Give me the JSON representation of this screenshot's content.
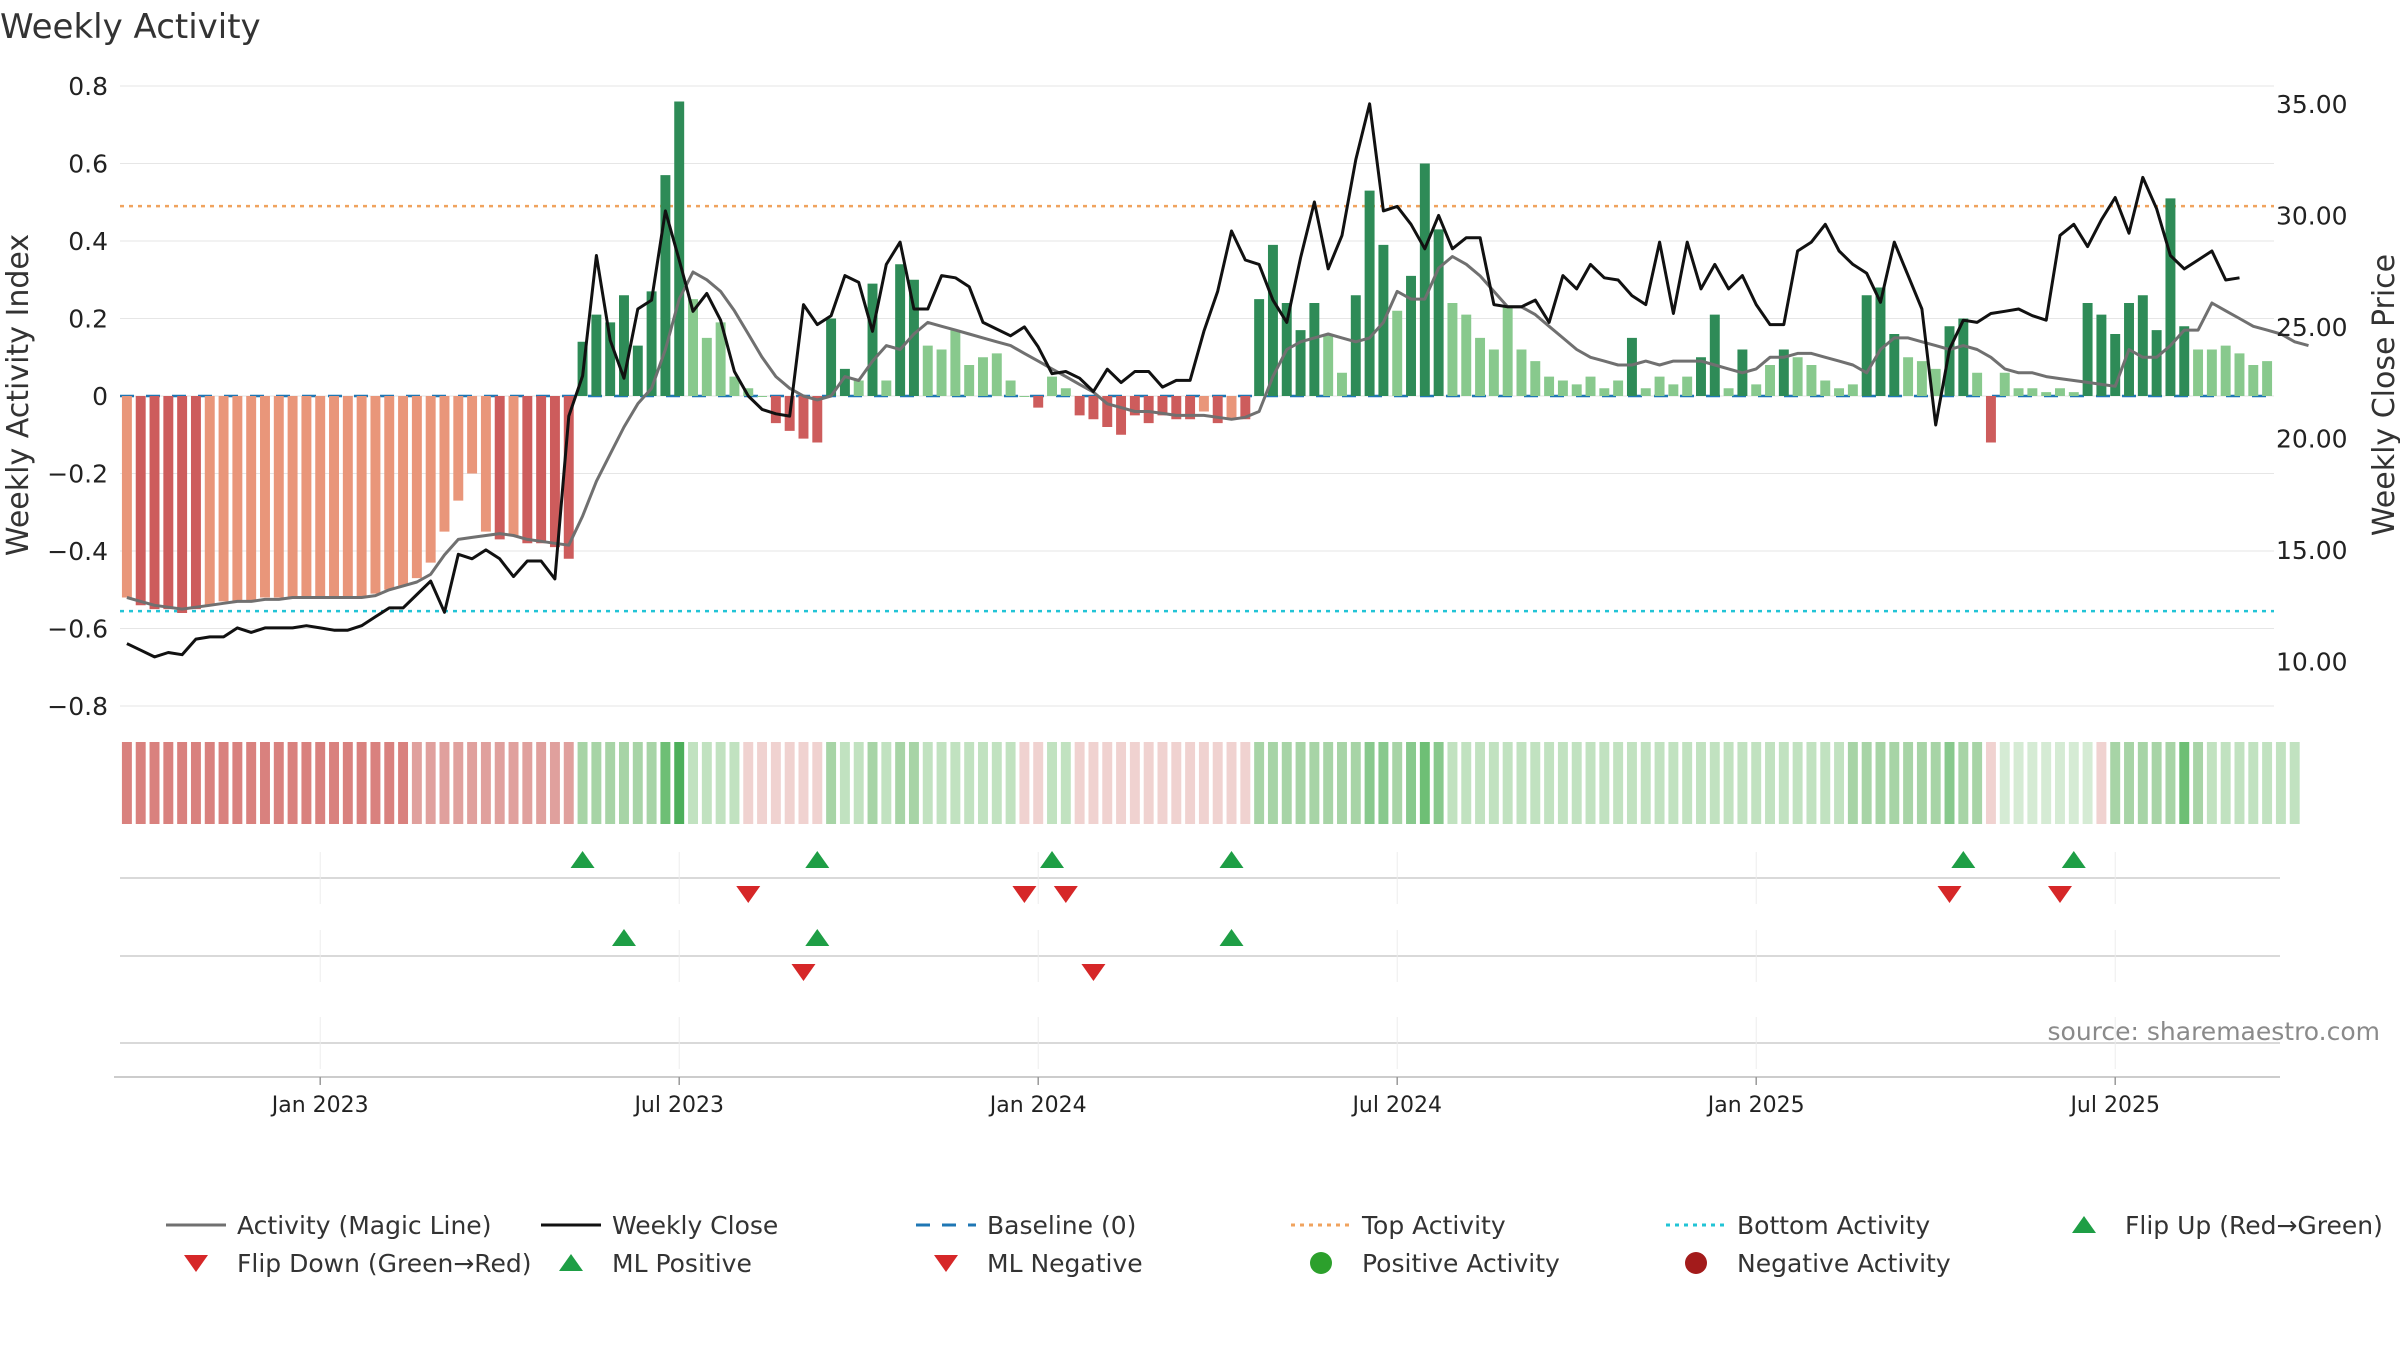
{
  "chart_data": {
    "type": "bar+line",
    "title": "Weekly Activity",
    "ylabel_left": "Weekly Activity Index",
    "ylabel_right": "Weekly Close Price",
    "ylim_left": [
      -0.8,
      0.8
    ],
    "ylim_right": [
      8.0,
      35.8
    ],
    "left_ticks": [
      0.8,
      0.6,
      0.4,
      0.2,
      0,
      -0.2,
      -0.4,
      -0.6,
      -0.8
    ],
    "left_tick_labels": [
      "0.8",
      "0.6",
      "0.4",
      "0.2",
      "0",
      "−0.2",
      "−0.4",
      "−0.6",
      "−0.8"
    ],
    "right_ticks": [
      35,
      30,
      25,
      20,
      15,
      10
    ],
    "right_tick_labels": [
      "35.00",
      "30.00",
      "25.00",
      "20.00",
      "15.00",
      "10.00"
    ],
    "x_ticks": [
      {
        "label": "Jan 2023",
        "week": 14
      },
      {
        "label": "Jul 2023",
        "week": 40
      },
      {
        "label": "Jan 2024",
        "week": 66
      },
      {
        "label": "Jul 2024",
        "week": 92
      },
      {
        "label": "Jan 2025",
        "week": 118
      },
      {
        "label": "Jul 2025",
        "week": 144
      }
    ],
    "top_activity": 0.49,
    "bottom_activity": -0.555,
    "activity": [
      -0.52,
      -0.54,
      -0.55,
      -0.55,
      -0.56,
      -0.55,
      -0.54,
      -0.53,
      -0.53,
      -0.53,
      -0.52,
      -0.52,
      -0.52,
      -0.52,
      -0.52,
      -0.52,
      -0.52,
      -0.52,
      -0.51,
      -0.5,
      -0.49,
      -0.47,
      -0.43,
      -0.35,
      -0.27,
      -0.2,
      -0.35,
      -0.37,
      -0.36,
      -0.38,
      -0.38,
      -0.39,
      -0.42,
      0.14,
      0.21,
      0.19,
      0.26,
      0.13,
      0.27,
      0.57,
      0.76,
      0.25,
      0.15,
      0.19,
      0.05,
      0.02,
      0.0,
      -0.07,
      -0.09,
      -0.11,
      -0.12,
      0.2,
      0.07,
      0.04,
      0.29,
      0.04,
      0.34,
      0.3,
      0.13,
      0.12,
      0.17,
      0.08,
      0.1,
      0.11,
      0.04,
      0.0,
      -0.03,
      0.05,
      0.02,
      -0.05,
      -0.06,
      -0.08,
      -0.1,
      -0.05,
      -0.07,
      -0.05,
      -0.06,
      -0.06,
      -0.04,
      -0.07,
      -0.06,
      -0.06,
      0.25,
      0.39,
      0.24,
      0.17,
      0.24,
      0.16,
      0.06,
      0.26,
      0.53,
      0.39,
      0.22,
      0.31,
      0.6,
      0.43,
      0.24,
      0.21,
      0.15,
      0.12,
      0.23,
      0.12,
      0.09,
      0.05,
      0.04,
      0.03,
      0.05,
      0.02,
      0.04,
      0.15,
      0.02,
      0.05,
      0.03,
      0.05,
      0.1,
      0.21,
      0.02,
      0.12,
      0.03,
      0.08,
      0.12,
      0.1,
      0.08,
      0.04,
      0.02,
      0.03,
      0.26,
      0.28,
      0.16,
      0.1,
      0.09,
      0.07,
      0.18,
      0.2,
      0.06,
      -0.12,
      0.06,
      0.02,
      0.02,
      0.01,
      0.02,
      0.01,
      0.24,
      0.21,
      0.16,
      0.24,
      0.26,
      0.17,
      0.51,
      0.18,
      0.12,
      0.12,
      0.13,
      0.11,
      0.08,
      0.09
    ],
    "magic_line": [
      -0.52,
      -0.53,
      -0.54,
      -0.545,
      -0.55,
      -0.545,
      -0.54,
      -0.535,
      -0.53,
      -0.53,
      -0.525,
      -0.525,
      -0.52,
      -0.52,
      -0.52,
      -0.52,
      -0.52,
      -0.52,
      -0.515,
      -0.5,
      -0.49,
      -0.48,
      -0.46,
      -0.41,
      -0.37,
      -0.365,
      -0.36,
      -0.355,
      -0.36,
      -0.37,
      -0.375,
      -0.38,
      -0.385,
      -0.31,
      -0.22,
      -0.15,
      -0.08,
      -0.02,
      0.02,
      0.12,
      0.25,
      0.32,
      0.3,
      0.27,
      0.22,
      0.16,
      0.1,
      0.05,
      0.02,
      0.0,
      -0.01,
      0.0,
      0.05,
      0.04,
      0.09,
      0.13,
      0.12,
      0.16,
      0.19,
      0.18,
      0.17,
      0.16,
      0.15,
      0.14,
      0.13,
      0.11,
      0.09,
      0.07,
      0.05,
      0.03,
      0.01,
      -0.02,
      -0.03,
      -0.04,
      -0.04,
      -0.045,
      -0.05,
      -0.05,
      -0.05,
      -0.055,
      -0.06,
      -0.055,
      -0.04,
      0.05,
      0.12,
      0.14,
      0.15,
      0.16,
      0.15,
      0.14,
      0.15,
      0.19,
      0.27,
      0.25,
      0.25,
      0.33,
      0.36,
      0.34,
      0.31,
      0.27,
      0.23,
      0.23,
      0.21,
      0.18,
      0.15,
      0.12,
      0.1,
      0.09,
      0.08,
      0.08,
      0.09,
      0.08,
      0.09,
      0.09,
      0.09,
      0.08,
      0.07,
      0.06,
      0.07,
      0.1,
      0.1,
      0.11,
      0.11,
      0.1,
      0.09,
      0.08,
      0.06,
      0.12,
      0.15,
      0.15,
      0.14,
      0.13,
      0.12,
      0.13,
      0.12,
      0.1,
      0.07,
      0.06,
      0.06,
      0.05,
      0.045,
      0.04,
      0.035,
      0.03,
      0.025,
      0.12,
      0.1,
      0.1,
      0.13,
      0.17,
      0.17,
      0.24,
      0.22,
      0.2,
      0.18,
      0.17,
      0.16,
      0.14,
      0.13
    ],
    "weekly_close": [
      10.8,
      10.5,
      10.2,
      10.4,
      10.3,
      11.0,
      11.1,
      11.1,
      11.5,
      11.3,
      11.5,
      11.5,
      11.5,
      11.6,
      11.5,
      11.4,
      11.4,
      11.6,
      12.0,
      12.4,
      12.4,
      13.0,
      13.6,
      12.2,
      14.8,
      14.6,
      15.0,
      14.6,
      13.8,
      14.5,
      14.5,
      13.7,
      21.0,
      22.8,
      28.2,
      24.4,
      22.7,
      25.8,
      26.2,
      30.2,
      28.0,
      25.7,
      26.5,
      25.3,
      23.0,
      21.9,
      21.3,
      21.1,
      21.0,
      26.0,
      25.1,
      25.5,
      27.3,
      27.0,
      24.8,
      27.8,
      28.8,
      25.8,
      25.8,
      27.3,
      27.2,
      26.8,
      25.2,
      24.9,
      24.6,
      25.0,
      24.1,
      22.9,
      23.0,
      22.7,
      22.1,
      23.1,
      22.5,
      23.0,
      23.0,
      22.3,
      22.6,
      22.6,
      24.8,
      26.6,
      29.3,
      28.0,
      27.8,
      26.2,
      25.2,
      28.1,
      30.6,
      27.6,
      29.1,
      32.5,
      35.0,
      30.2,
      30.4,
      29.6,
      28.5,
      30.0,
      28.5,
      29.0,
      29.0,
      26.0,
      25.9,
      25.9,
      26.2,
      25.2,
      27.3,
      26.7,
      27.8,
      27.2,
      27.1,
      26.4,
      26.0,
      28.8,
      25.6,
      28.8,
      26.7,
      27.8,
      26.7,
      27.3,
      26.0,
      25.1,
      25.1,
      28.4,
      28.8,
      29.6,
      28.4,
      27.8,
      27.4,
      26.1,
      28.8,
      27.3,
      25.8,
      20.6,
      24.0,
      25.3,
      25.2,
      25.6,
      25.7,
      25.8,
      25.5,
      25.3,
      29.1,
      29.6,
      28.6,
      29.8,
      30.8,
      29.2,
      31.7,
      30.3,
      28.2,
      27.6,
      28.0,
      28.4,
      27.1,
      27.2
    ],
    "strip_colors": [
      "#d9817e",
      "#d9817e",
      "#d9817e",
      "#d9817e",
      "#d9817e",
      "#d9817e",
      "#d9817e",
      "#d9817e",
      "#d9817e",
      "#d9817e",
      "#d9817e",
      "#d9817e",
      "#d9817e",
      "#d9817e",
      "#d9817e",
      "#d9817e",
      "#d9817e",
      "#d9817e",
      "#d9817e",
      "#d9817e",
      "#d9817e",
      "#e0a09d",
      "#e0a09d",
      "#e0a09d",
      "#e0a09d",
      "#e0a09d",
      "#e0a09d",
      "#e0a09d",
      "#e0a09d",
      "#e0a09d",
      "#e0a09d",
      "#e0a09d",
      "#e0a09d",
      "#a7d4a6",
      "#a7d4a6",
      "#a7d4a6",
      "#a7d4a6",
      "#a7d4a6",
      "#a7d4a6",
      "#6ebf75",
      "#4caf5a",
      "#c1e2c0",
      "#c1e2c0",
      "#c1e2c0",
      "#c1e2c0",
      "#f0d2d0",
      "#f0d2d0",
      "#f0d2d0",
      "#f0d2d0",
      "#f0d2d0",
      "#f0d2d0",
      "#a7d4a6",
      "#c1e2c0",
      "#c1e2c0",
      "#a7d4a6",
      "#c1e2c0",
      "#a7d4a6",
      "#a7d4a6",
      "#c1e2c0",
      "#c1e2c0",
      "#c1e2c0",
      "#c1e2c0",
      "#c1e2c0",
      "#c1e2c0",
      "#c1e2c0",
      "#f0d2d0",
      "#f0d2d0",
      "#c1e2c0",
      "#c1e2c0",
      "#f0d2d0",
      "#f0d2d0",
      "#f0d2d0",
      "#f0d2d0",
      "#f0d2d0",
      "#f0d2d0",
      "#f0d2d0",
      "#f0d2d0",
      "#f0d2d0",
      "#f0d2d0",
      "#f0d2d0",
      "#f0d2d0",
      "#f0d2d0",
      "#a7d4a6",
      "#a7d4a6",
      "#a7d4a6",
      "#a7d4a6",
      "#a7d4a6",
      "#a7d4a6",
      "#a7d4a6",
      "#a7d4a6",
      "#88c98d",
      "#88c98d",
      "#a7d4a6",
      "#88c98d",
      "#6ebf75",
      "#88c98d",
      "#c1e2c0",
      "#c1e2c0",
      "#c1e2c0",
      "#c1e2c0",
      "#c1e2c0",
      "#c1e2c0",
      "#c1e2c0",
      "#c1e2c0",
      "#c1e2c0",
      "#c1e2c0",
      "#c1e2c0",
      "#c1e2c0",
      "#c1e2c0",
      "#c1e2c0",
      "#c1e2c0",
      "#c1e2c0",
      "#c1e2c0",
      "#c1e2c0",
      "#c1e2c0",
      "#c1e2c0",
      "#c1e2c0",
      "#c1e2c0",
      "#c1e2c0",
      "#c1e2c0",
      "#c1e2c0",
      "#c1e2c0",
      "#c1e2c0",
      "#c1e2c0",
      "#c1e2c0",
      "#a7d4a6",
      "#a7d4a6",
      "#a7d4a6",
      "#a7d4a6",
      "#a7d4a6",
      "#a7d4a6",
      "#a7d4a6",
      "#88c98d",
      "#a7d4a6",
      "#a7d4a6",
      "#f0d2d0",
      "#d5ebd4",
      "#d5ebd4",
      "#d5ebd4",
      "#d5ebd4",
      "#d5ebd4",
      "#d5ebd4",
      "#d5ebd4",
      "#f0d2d0",
      "#a7d4a6",
      "#a7d4a6",
      "#a7d4a6",
      "#a7d4a6",
      "#a7d4a6",
      "#6ebf75",
      "#a7d4a6",
      "#c1e2c0",
      "#c1e2c0",
      "#c1e2c0",
      "#c1e2c0",
      "#c1e2c0",
      "#c1e2c0",
      "#c1e2c0"
    ],
    "flip_up_weeks": [
      33,
      50,
      67,
      80,
      133,
      141
    ],
    "flip_down_weeks": [
      45,
      65,
      68,
      132,
      140
    ],
    "ml_positive_weeks": [
      36,
      50,
      80
    ],
    "ml_negative_weeks": [
      49,
      70
    ],
    "source": "source: sharemaestro.com",
    "legend": [
      {
        "label": "Activity (Magic Line)",
        "type": "line",
        "color": "#707070"
      },
      {
        "label": "Weekly Close",
        "type": "line",
        "color": "#111111"
      },
      {
        "label": "Baseline (0)",
        "type": "dash",
        "color": "#1f77b4"
      },
      {
        "label": "Top Activity",
        "type": "dot",
        "color": "#f0a35e"
      },
      {
        "label": "Bottom Activity",
        "type": "dot",
        "color": "#22c4d6"
      },
      {
        "label": "Flip Up (Red→Green)",
        "type": "tri-up",
        "color": "#1e9e45"
      },
      {
        "label": "Flip Down (Green→Red)",
        "type": "tri-down",
        "color": "#d62728"
      },
      {
        "label": "ML Positive",
        "type": "tri-up",
        "color": "#1e9e45"
      },
      {
        "label": "ML Negative",
        "type": "tri-down",
        "color": "#d62728"
      },
      {
        "label": "Positive Activity",
        "type": "circle",
        "color": "#2ca02c"
      },
      {
        "label": "Negative Activity",
        "type": "circle",
        "color": "#a31b1b"
      }
    ],
    "colors": {
      "pos_strong": "#2e8b57",
      "pos_light": "#88c98d",
      "neg_strong": "#cd5c5c",
      "neg_light": "#e9967a",
      "magic_line": "#707070",
      "close_line": "#111111",
      "baseline": "#1f77b4",
      "top": "#f0a35e",
      "bottom": "#22c4d6"
    }
  }
}
